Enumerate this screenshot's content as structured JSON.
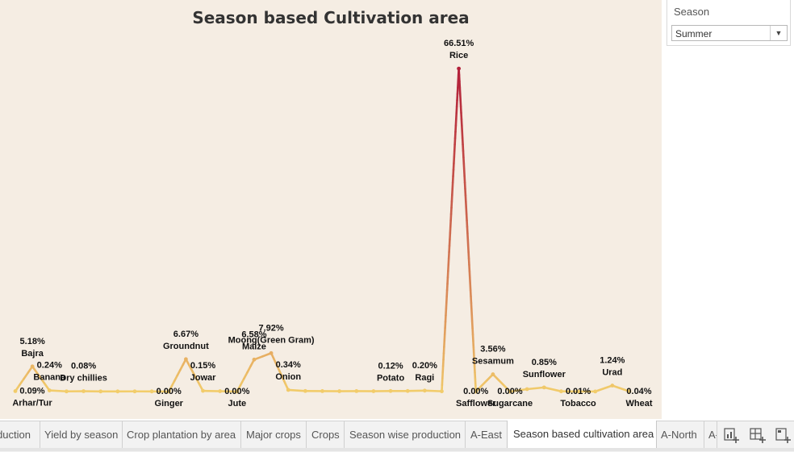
{
  "chart_data": {
    "type": "line",
    "title": "Season based Cultivation area",
    "x": [
      "Arhar/Tur",
      "Bajra",
      "Banana",
      "",
      "Dry chillies",
      "",
      "",
      "",
      "",
      "Ginger",
      "Groundnut",
      "Jowar",
      "",
      "Jute",
      "Maize",
      "Moong(Green Gram)",
      "Onion",
      "",
      "",
      "",
      "",
      "",
      "Potato",
      "",
      "Ragi",
      "",
      "Rice",
      "Safflower",
      "Sesamum",
      "Sugarcane",
      "",
      "Sunflower",
      "",
      "Tobacco",
      "",
      "Urad",
      "Wheat"
    ],
    "y": [
      0.09,
      5.18,
      0.24,
      0.04,
      0.08,
      0.03,
      0.03,
      0.04,
      0.03,
      0.0,
      6.67,
      0.15,
      0.08,
      0.0,
      6.58,
      7.92,
      0.34,
      0.12,
      0.1,
      0.08,
      0.1,
      0.08,
      0.12,
      0.12,
      0.2,
      0.06,
      66.51,
      0.0,
      3.56,
      0.0,
      0.5,
      0.85,
      0.05,
      0.01,
      0.02,
      1.24,
      0.04
    ],
    "labels": [
      {
        "i": 0,
        "value": "0.09%",
        "name": "Arhar/Tur",
        "pos": "below"
      },
      {
        "i": 1,
        "value": "5.18%",
        "name": "Bajra",
        "pos": "above"
      },
      {
        "i": 2,
        "value": "0.24%",
        "name": "Banana",
        "pos": "above"
      },
      {
        "i": 4,
        "value": "0.08%",
        "name": "Dry chillies",
        "pos": "above"
      },
      {
        "i": 9,
        "value": "0.00%",
        "name": "Ginger",
        "pos": "below"
      },
      {
        "i": 10,
        "value": "6.67%",
        "name": "Groundnut",
        "pos": "above"
      },
      {
        "i": 11,
        "value": "0.15%",
        "name": "Jowar",
        "pos": "above"
      },
      {
        "i": 13,
        "value": "0.00%",
        "name": "Jute",
        "pos": "below"
      },
      {
        "i": 14,
        "value": "6.58%",
        "name": "Maize",
        "pos": "above"
      },
      {
        "i": 15,
        "value": "7.92%",
        "name": "Moong(Green Gram)",
        "pos": "above"
      },
      {
        "i": 16,
        "value": "0.34%",
        "name": "Onion",
        "pos": "above"
      },
      {
        "i": 22,
        "value": "0.12%",
        "name": "Potato",
        "pos": "above"
      },
      {
        "i": 24,
        "value": "0.20%",
        "name": "Ragi",
        "pos": "above"
      },
      {
        "i": 26,
        "value": "66.51%",
        "name": "Rice",
        "pos": "above"
      },
      {
        "i": 27,
        "value": "0.00%",
        "name": "Safflower",
        "pos": "below"
      },
      {
        "i": 28,
        "value": "3.56%",
        "name": "Sesamum",
        "pos": "above"
      },
      {
        "i": 29,
        "value": "0.00%",
        "name": "Sugarcane",
        "pos": "below"
      },
      {
        "i": 31,
        "value": "0.85%",
        "name": "Sunflower",
        "pos": "above"
      },
      {
        "i": 33,
        "value": "0.01%",
        "name": "Tobacco",
        "pos": "below"
      },
      {
        "i": 35,
        "value": "1.24%",
        "name": "Urad",
        "pos": "above"
      },
      {
        "i": 36,
        "value": "0.04%",
        "name": "Wheat",
        "pos": "below"
      }
    ],
    "ylim": [
      0,
      72
    ],
    "grid": false,
    "colors": {
      "low": "#f2cd6b",
      "high": "#b3203a",
      "background": "#f5ede3"
    }
  },
  "filter": {
    "title": "Season",
    "value": "Summer"
  },
  "tabs": [
    {
      "label": "Production"
    },
    {
      "label": "Yield by season"
    },
    {
      "label": "Crop plantation by area"
    },
    {
      "label": "Major crops"
    },
    {
      "label": "Crops"
    },
    {
      "label": "Season wise production"
    },
    {
      "label": "A-East"
    },
    {
      "label": "Season based cultivation area",
      "active": true
    },
    {
      "label": "A-North"
    },
    {
      "label": "A-South"
    }
  ]
}
